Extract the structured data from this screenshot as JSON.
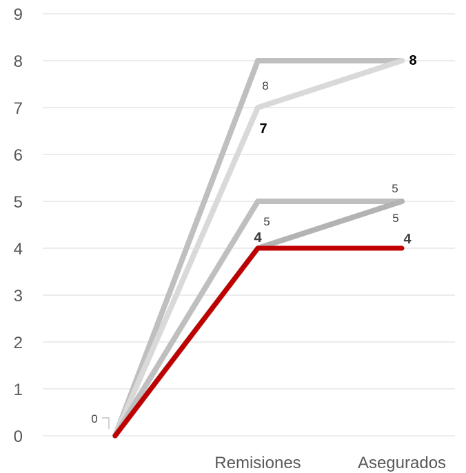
{
  "chart_data": {
    "type": "line",
    "categories": [
      "",
      "Remisiones",
      "Asegurados"
    ],
    "ylim": [
      0,
      9
    ],
    "yticks": [
      "0",
      "1",
      "2",
      "3",
      "4",
      "5",
      "6",
      "7",
      "8",
      "9"
    ],
    "grid": true,
    "series": [
      {
        "values": [
          0,
          8,
          8
        ],
        "color": "#bfbfbf",
        "labels": [
          "",
          "8",
          "8"
        ]
      },
      {
        "values": [
          0,
          7,
          8
        ],
        "color": "#d9d9d9",
        "labels": [
          "",
          "7",
          ""
        ]
      },
      {
        "values": [
          0,
          5,
          5
        ],
        "color": "#bfbfbf",
        "labels": [
          "",
          "5",
          "5"
        ]
      },
      {
        "values": [
          0,
          4,
          5
        ],
        "color": "#b3b3b3",
        "labels": [
          "",
          "4",
          "5"
        ]
      },
      {
        "values": [
          0,
          4,
          4
        ],
        "color": "#c00000",
        "labels": [
          "0",
          "4",
          "4"
        ]
      }
    ]
  }
}
